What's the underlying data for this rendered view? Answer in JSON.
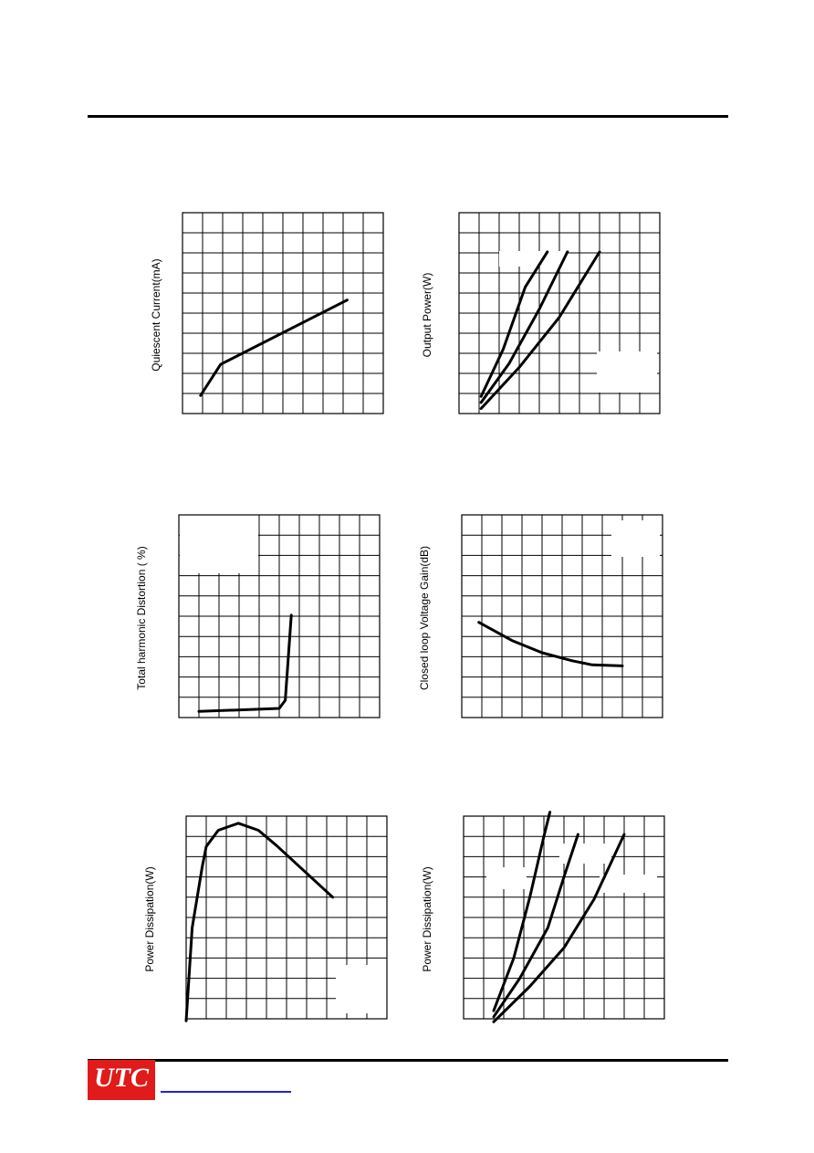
{
  "chart_data": [
    {
      "type": "line",
      "ylabel": "Quiescent Current(mA)",
      "grid": true,
      "series": [
        {
          "x": [
            0.9,
            1.9,
            8.2
          ],
          "y": [
            0.9,
            2.45,
            5.65
          ]
        }
      ]
    },
    {
      "type": "line",
      "ylabel": "Output Power(W)",
      "grid": true,
      "series": [
        {
          "x": [
            1.1,
            2.2,
            3.3,
            4.4
          ],
          "y": [
            0.85,
            3.2,
            6.3,
            8.05
          ]
        },
        {
          "x": [
            1.1,
            2.5,
            4.0,
            5.4
          ],
          "y": [
            0.55,
            2.5,
            5.2,
            8.05
          ]
        },
        {
          "x": [
            1.1,
            3.0,
            5.0,
            7.0
          ],
          "y": [
            0.25,
            2.3,
            4.8,
            8.05
          ]
        }
      ]
    },
    {
      "type": "line",
      "ylabel": "Total harmonic Distortion ( %)",
      "grid": true,
      "series": [
        {
          "x": [
            1.0,
            5.0,
            5.3,
            5.6
          ],
          "y": [
            0.3,
            0.45,
            0.85,
            5.05
          ]
        }
      ]
    },
    {
      "type": "line",
      "ylabel": "Closed loop Voltage Gain(dB)",
      "grid": true,
      "series": [
        {
          "x": [
            0.85,
            2.5,
            4.0,
            5.5,
            6.5,
            8.0
          ],
          "y": [
            4.7,
            3.8,
            3.2,
            2.8,
            2.6,
            2.55
          ]
        }
      ]
    },
    {
      "type": "line",
      "ylabel": "Power Dissipation(W)",
      "grid": true,
      "series": [
        {
          "x": [
            0.0,
            0.3,
            0.8,
            1.0,
            1.6,
            2.6,
            3.6,
            4.5,
            7.3
          ],
          "y": [
            -0.1,
            4.5,
            7.5,
            8.5,
            9.3,
            9.65,
            9.3,
            8.55,
            6.0
          ]
        }
      ]
    },
    {
      "type": "line",
      "ylabel": "Power Dissipation(W)",
      "grid": true,
      "series": [
        {
          "x": [
            1.5,
            2.5,
            3.3,
            4.0,
            4.3
          ],
          "y": [
            0.4,
            3.0,
            6.0,
            9.0,
            10.2
          ]
        },
        {
          "x": [
            1.5,
            2.8,
            4.2,
            5.0,
            5.7
          ],
          "y": [
            0.1,
            2.0,
            4.5,
            7.0,
            9.1
          ]
        },
        {
          "x": [
            1.5,
            3.3,
            5.0,
            6.5,
            8.0
          ],
          "y": [
            -0.15,
            1.6,
            3.5,
            5.9,
            9.1
          ]
        }
      ]
    }
  ],
  "footer": {
    "logo_text": "UTC"
  }
}
